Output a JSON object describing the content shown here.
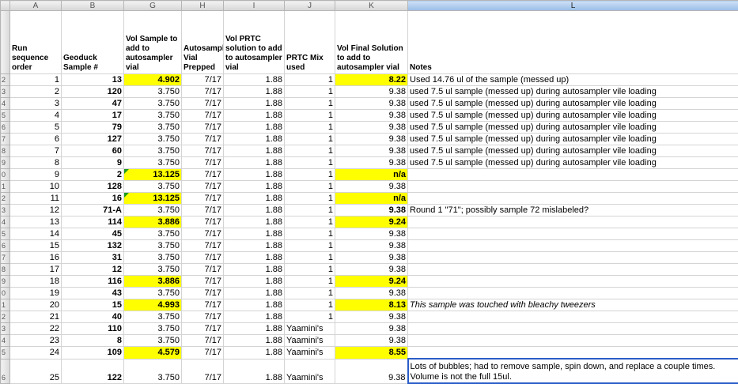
{
  "columns": [
    "A",
    "B",
    "G",
    "H",
    "I",
    "J",
    "K",
    "L"
  ],
  "headers": {
    "run": "Run sequence order",
    "geoduck": "Geoduck Sample #",
    "vol_sample": "Vol Sample to add to autosampler vial",
    "autosampler": "Autosampler Vial Prepped",
    "vol_prtc": "Vol PRTC solution to add to autosampler vial",
    "prtc_mix": "PRTC Mix used",
    "vol_final": "Vol Final Solution to add to autosampler vial",
    "notes": "Notes"
  },
  "row_labels": [
    "",
    "2",
    "3",
    "4",
    "5",
    "6",
    "7",
    "8",
    "9",
    "0",
    "1",
    "2",
    "3",
    "4",
    "5",
    "6",
    "7",
    "8",
    "9",
    "0",
    "1",
    "2",
    "3",
    "4",
    "5",
    "6"
  ],
  "rows": [
    {
      "run": "1",
      "geo": "13",
      "vol": "4.902",
      "date": "7/17",
      "prtc": "1.88",
      "mix": "1",
      "final": "8.22",
      "notes": "Used 14.76 ul of the sample (messed up)"
    },
    {
      "run": "2",
      "geo": "120",
      "vol": "3.750",
      "date": "7/17",
      "prtc": "1.88",
      "mix": "1",
      "final": "9.38",
      "notes": "used 7.5 ul sample (messed up) during autosampler vile loading"
    },
    {
      "run": "3",
      "geo": "47",
      "vol": "3.750",
      "date": "7/17",
      "prtc": "1.88",
      "mix": "1",
      "final": "9.38",
      "notes": "used 7.5 ul sample (messed up) during autosampler vile loading"
    },
    {
      "run": "4",
      "geo": "17",
      "vol": "3.750",
      "date": "7/17",
      "prtc": "1.88",
      "mix": "1",
      "final": "9.38",
      "notes": "used 7.5 ul sample (messed up) during autosampler vile loading"
    },
    {
      "run": "5",
      "geo": "79",
      "vol": "3.750",
      "date": "7/17",
      "prtc": "1.88",
      "mix": "1",
      "final": "9.38",
      "notes": "used 7.5 ul sample (messed up) during autosampler vile loading"
    },
    {
      "run": "6",
      "geo": "127",
      "vol": "3.750",
      "date": "7/17",
      "prtc": "1.88",
      "mix": "1",
      "final": "9.38",
      "notes": "used 7.5 ul sample (messed up) during autosampler vile loading"
    },
    {
      "run": "7",
      "geo": "60",
      "vol": "3.750",
      "date": "7/17",
      "prtc": "1.88",
      "mix": "1",
      "final": "9.38",
      "notes": "used 7.5 ul sample (messed up) during autosampler vile loading"
    },
    {
      "run": "8",
      "geo": "9",
      "vol": "3.750",
      "date": "7/17",
      "prtc": "1.88",
      "mix": "1",
      "final": "9.38",
      "notes": "used 7.5 ul sample (messed up) during autosampler vile loading"
    },
    {
      "run": "9",
      "geo": "2",
      "vol": "13.125",
      "date": "7/17",
      "prtc": "1.88",
      "mix": "1",
      "final": "n/a",
      "notes": ""
    },
    {
      "run": "10",
      "geo": "128",
      "vol": "3.750",
      "date": "7/17",
      "prtc": "1.88",
      "mix": "1",
      "final": "9.38",
      "notes": ""
    },
    {
      "run": "11",
      "geo": "16",
      "vol": "13.125",
      "date": "7/17",
      "prtc": "1.88",
      "mix": "1",
      "final": "n/a",
      "notes": ""
    },
    {
      "run": "12",
      "geo": "71-A",
      "vol": "3.750",
      "date": "7/17",
      "prtc": "1.88",
      "mix": "1",
      "final": "9.38",
      "notes": "Round 1 \"71\"; possibly sample 72 mislabeled?"
    },
    {
      "run": "13",
      "geo": "114",
      "vol": "3.886",
      "date": "7/17",
      "prtc": "1.88",
      "mix": "1",
      "final": "9.24",
      "notes": ""
    },
    {
      "run": "14",
      "geo": "45",
      "vol": "3.750",
      "date": "7/17",
      "prtc": "1.88",
      "mix": "1",
      "final": "9.38",
      "notes": ""
    },
    {
      "run": "15",
      "geo": "132",
      "vol": "3.750",
      "date": "7/17",
      "prtc": "1.88",
      "mix": "1",
      "final": "9.38",
      "notes": ""
    },
    {
      "run": "16",
      "geo": "31",
      "vol": "3.750",
      "date": "7/17",
      "prtc": "1.88",
      "mix": "1",
      "final": "9.38",
      "notes": ""
    },
    {
      "run": "17",
      "geo": "12",
      "vol": "3.750",
      "date": "7/17",
      "prtc": "1.88",
      "mix": "1",
      "final": "9.38",
      "notes": ""
    },
    {
      "run": "18",
      "geo": "116",
      "vol": "3.886",
      "date": "7/17",
      "prtc": "1.88",
      "mix": "1",
      "final": "9.24",
      "notes": ""
    },
    {
      "run": "19",
      "geo": "43",
      "vol": "3.750",
      "date": "7/17",
      "prtc": "1.88",
      "mix": "1",
      "final": "9.38",
      "notes": ""
    },
    {
      "run": "20",
      "geo": "15",
      "vol": "4.993",
      "date": "7/17",
      "prtc": "1.88",
      "mix": "1",
      "final": "8.13",
      "notes": "This sample was touched with bleachy tweezers"
    },
    {
      "run": "21",
      "geo": "40",
      "vol": "3.750",
      "date": "7/17",
      "prtc": "1.88",
      "mix": "1",
      "final": "9.38",
      "notes": ""
    },
    {
      "run": "22",
      "geo": "110",
      "vol": "3.750",
      "date": "7/17",
      "prtc": "1.88",
      "mix": "Yaamini's",
      "final": "9.38",
      "notes": ""
    },
    {
      "run": "23",
      "geo": "8",
      "vol": "3.750",
      "date": "7/17",
      "prtc": "1.88",
      "mix": "Yaamini's",
      "final": "9.38",
      "notes": ""
    },
    {
      "run": "24",
      "geo": "109",
      "vol": "4.579",
      "date": "7/17",
      "prtc": "1.88",
      "mix": "Yaamini's",
      "final": "8.55",
      "notes": ""
    },
    {
      "run": "25",
      "geo": "122",
      "vol": "3.750",
      "date": "7/17",
      "prtc": "1.88",
      "mix": "Yaamini's",
      "final": "9.38",
      "notes": "Lots of bubbles; had to remove sample, spin down, and replace a couple times. Volume is not the full 15ul."
    }
  ],
  "highlight_color": "#ffff00"
}
